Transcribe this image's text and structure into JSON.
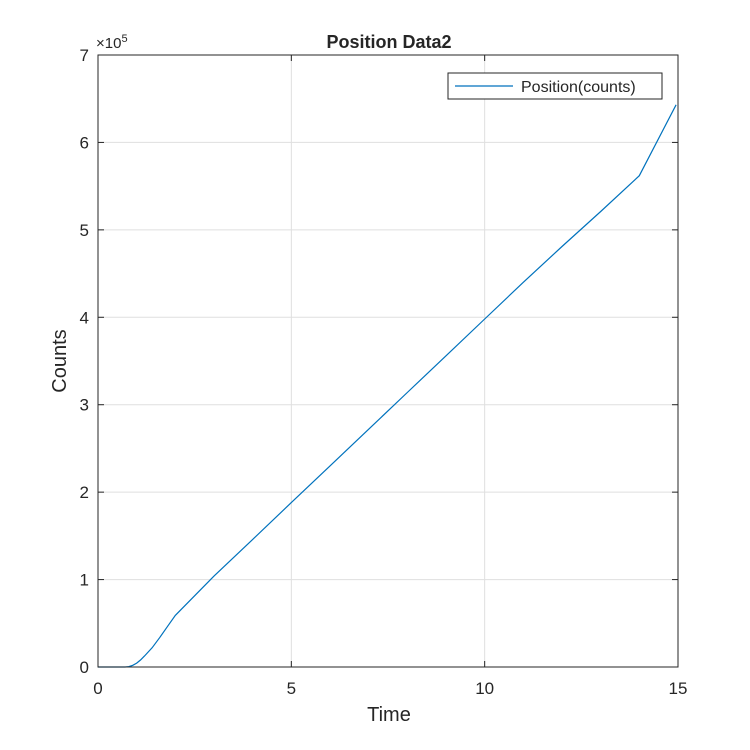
{
  "chart_data": {
    "type": "line",
    "title": "Position Data2",
    "xlabel": "Time",
    "ylabel": "Counts",
    "xlim": [
      0,
      15
    ],
    "ylim": [
      0,
      700000
    ],
    "x_ticks": [
      0,
      5,
      10,
      15
    ],
    "x_tick_labels": [
      "0",
      "5",
      "10",
      "15"
    ],
    "y_ticks": [
      0,
      100000,
      200000,
      300000,
      400000,
      500000,
      600000,
      700000
    ],
    "y_tick_labels": [
      "0",
      "1",
      "2",
      "3",
      "4",
      "5",
      "6",
      "7"
    ],
    "y_exponent_prefix": "×10",
    "y_exponent_power": "5",
    "grid": true,
    "legend_position": "top-right",
    "series": [
      {
        "name": "Position(counts)",
        "color": "#0072bd",
        "x": [
          0,
          0.5,
          0.7,
          0.8,
          0.9,
          1.0,
          1.1,
          1.2,
          1.4,
          1.6,
          1.8,
          2.0,
          3,
          4,
          5,
          6,
          7,
          8,
          9,
          10,
          11,
          12,
          13,
          14,
          14.95
        ],
        "y": [
          0,
          0,
          0,
          500,
          2000,
          4500,
          8000,
          12500,
          22000,
          34000,
          46500,
          59000,
          104000,
          146000,
          188000,
          230000,
          272000,
          314000,
          356000,
          398000,
          440000,
          481000,
          521000,
          562000,
          643000
        ]
      }
    ]
  }
}
